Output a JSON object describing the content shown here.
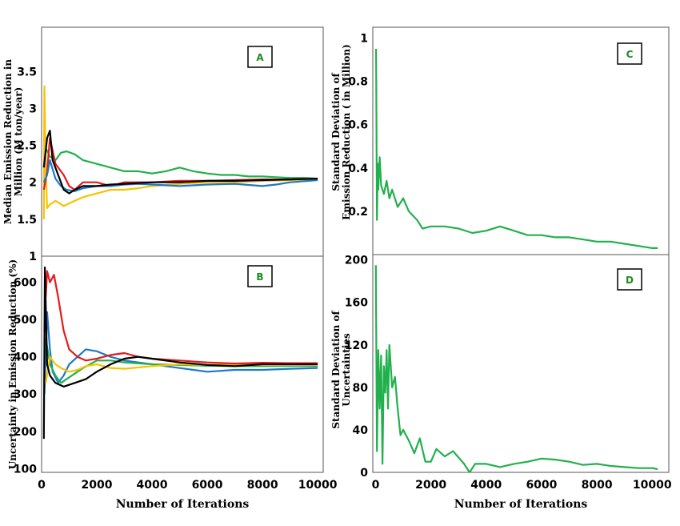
{
  "chart_data": [
    {
      "type": "line",
      "panel_label": "A",
      "ylabel_lines": [
        "Median Emission Reduction in",
        "Million  (M ton/year)"
      ],
      "xlim": [
        0,
        10200
      ],
      "ylim": [
        1,
        4.1
      ],
      "y_ticks": [
        1,
        1.5,
        2,
        2.5,
        3,
        3.5
      ],
      "y_tick_labels": [
        "1",
        "1.5",
        "2",
        "2.5",
        "3",
        "3.5"
      ],
      "series": [
        {
          "color": "#22b04c",
          "x": [
            100,
            300,
            500,
            700,
            900,
            1200,
            1500,
            2000,
            2500,
            3000,
            3500,
            4000,
            4500,
            5000,
            5500,
            6000,
            6500,
            7000,
            7500,
            8000,
            8500,
            9000,
            9500,
            10000
          ],
          "y": [
            2.5,
            2.35,
            2.3,
            2.4,
            2.42,
            2.38,
            2.3,
            2.25,
            2.2,
            2.15,
            2.15,
            2.12,
            2.15,
            2.2,
            2.15,
            2.12,
            2.1,
            2.1,
            2.08,
            2.08,
            2.07,
            2.06,
            2.06,
            2.05
          ]
        },
        {
          "color": "#f5c400",
          "x": [
            80,
            100,
            150,
            200,
            300,
            500,
            800,
            1200,
            1500,
            2000,
            2500,
            3000,
            3500,
            4000,
            5000,
            6000,
            7000,
            8000,
            9000,
            10000
          ],
          "y": [
            1.5,
            3.3,
            2.2,
            1.65,
            1.7,
            1.75,
            1.68,
            1.75,
            1.8,
            1.85,
            1.9,
            1.9,
            1.92,
            1.95,
            1.98,
            2.0,
            2.0,
            2.02,
            2.03,
            2.04
          ]
        },
        {
          "color": "#e41a1c",
          "x": [
            80,
            200,
            300,
            500,
            800,
            1000,
            1200,
            1500,
            2000,
            2500,
            3000,
            3500,
            4000,
            5000,
            6000,
            7000,
            8000,
            9000,
            10000
          ],
          "y": [
            1.9,
            2.15,
            2.6,
            2.25,
            2.1,
            1.95,
            1.9,
            2.0,
            2.0,
            1.95,
            2.0,
            2.0,
            2.0,
            2.02,
            2.02,
            2.03,
            2.04,
            2.04,
            2.05
          ]
        },
        {
          "color": "#1f78c8",
          "x": [
            80,
            200,
            300,
            500,
            700,
            900,
            1200,
            1500,
            2000,
            2500,
            3000,
            3500,
            4000,
            5000,
            6000,
            7000,
            8000,
            8500,
            9000,
            10000
          ],
          "y": [
            2.0,
            2.1,
            2.3,
            2.05,
            1.95,
            1.9,
            1.88,
            1.92,
            1.95,
            1.95,
            1.97,
            1.98,
            1.97,
            1.95,
            1.97,
            1.98,
            1.95,
            1.97,
            2.0,
            2.03
          ]
        },
        {
          "color": "#000000",
          "x": [
            80,
            200,
            300,
            400,
            600,
            800,
            1000,
            1200,
            1500,
            2000,
            2500,
            3000,
            3500,
            4000,
            5000,
            6000,
            7000,
            8000,
            9000,
            10000
          ],
          "y": [
            2.2,
            2.6,
            2.7,
            2.3,
            2.1,
            1.9,
            1.85,
            1.9,
            1.95,
            1.95,
            1.97,
            1.98,
            1.99,
            2.0,
            2.0,
            2.02,
            2.02,
            2.03,
            2.04,
            2.05
          ]
        }
      ]
    },
    {
      "type": "line",
      "panel_label": "B",
      "ylabel_lines": [
        "Uncertainty in Emission Reduction (%)"
      ],
      "xlabel": "Number of Iterations",
      "xlim": [
        0,
        10200
      ],
      "ylim": [
        90,
        670
      ],
      "x_ticks": [
        0,
        2000,
        4000,
        6000,
        8000,
        10000
      ],
      "x_tick_labels": [
        "0",
        "2000",
        "4000",
        "6000",
        "8000",
        "10000"
      ],
      "y_ticks": [
        100,
        200,
        300,
        400,
        500,
        600
      ],
      "y_tick_labels": [
        "100",
        "200",
        "300",
        "400",
        "500",
        "600"
      ],
      "series": [
        {
          "color": "#1f78c8",
          "x": [
            100,
            200,
            300,
            400,
            600,
            800,
            1000,
            1300,
            1600,
            2000,
            2500,
            3000,
            3500,
            4000,
            5000,
            6000,
            7000,
            8000,
            9000,
            10000
          ],
          "y": [
            300,
            520,
            420,
            360,
            330,
            350,
            380,
            400,
            420,
            415,
            400,
            390,
            385,
            380,
            370,
            360,
            365,
            365,
            368,
            370
          ]
        },
        {
          "color": "#22b04c",
          "x": [
            150,
            300,
            500,
            700,
            1000,
            1500,
            2000,
            2500,
            3000,
            4000,
            5000,
            6000,
            7000,
            8000,
            9000,
            10000
          ],
          "y": [
            450,
            380,
            350,
            330,
            345,
            370,
            390,
            390,
            385,
            380,
            378,
            376,
            375,
            375,
            376,
            375
          ]
        },
        {
          "color": "#f5c400",
          "x": [
            150,
            300,
            500,
            700,
            1000,
            1300,
            1600,
            2000,
            2500,
            3000,
            4000,
            5000,
            6000,
            7000,
            8000,
            9000,
            10000
          ],
          "y": [
            330,
            400,
            380,
            370,
            360,
            365,
            375,
            380,
            370,
            368,
            375,
            380,
            378,
            380,
            378,
            378,
            378
          ]
        },
        {
          "color": "#e41a1c",
          "x": [
            150,
            200,
            300,
            450,
            600,
            800,
            1000,
            1300,
            1600,
            2000,
            2500,
            3000,
            3500,
            4000,
            5000,
            6000,
            7000,
            8000,
            9000,
            10000
          ],
          "y": [
            560,
            630,
            600,
            620,
            560,
            470,
            420,
            400,
            390,
            395,
            405,
            410,
            400,
            395,
            390,
            385,
            382,
            384,
            383,
            383
          ]
        },
        {
          "color": "#000000",
          "x": [
            80,
            120,
            200,
            300,
            500,
            800,
            1200,
            1600,
            2000,
            2500,
            3000,
            3500,
            4000,
            5000,
            6000,
            7000,
            8000,
            9000,
            10000
          ],
          "y": [
            180,
            640,
            380,
            350,
            330,
            320,
            330,
            340,
            360,
            380,
            395,
            400,
            395,
            385,
            378,
            375,
            380,
            380,
            380
          ]
        }
      ]
    },
    {
      "type": "line",
      "panel_label": "C",
      "ylabel_lines": [
        "Standard Deviation of",
        "Emission Reduction ( in Million)"
      ],
      "xlim": [
        -100,
        10600
      ],
      "ylim": [
        0,
        1.05
      ],
      "y_ticks": [
        0.2,
        0.4,
        0.6,
        0.8,
        1
      ],
      "y_tick_labels": [
        "0.2",
        "0.4",
        "0.6",
        "0.8",
        "1"
      ],
      "series": [
        {
          "color": "#22b04c",
          "x": [
            20,
            50,
            80,
            100,
            150,
            200,
            300,
            400,
            500,
            600,
            800,
            1000,
            1200,
            1500,
            1700,
            2000,
            2500,
            3000,
            3500,
            4000,
            4500,
            5000,
            5500,
            6000,
            6500,
            7000,
            7500,
            8000,
            8500,
            9000,
            9500,
            10000,
            10200
          ],
          "y": [
            0.95,
            0.16,
            0.42,
            0.3,
            0.45,
            0.32,
            0.28,
            0.34,
            0.26,
            0.3,
            0.22,
            0.26,
            0.2,
            0.16,
            0.12,
            0.13,
            0.13,
            0.12,
            0.1,
            0.11,
            0.13,
            0.11,
            0.09,
            0.09,
            0.08,
            0.08,
            0.07,
            0.06,
            0.06,
            0.05,
            0.04,
            0.03,
            0.03
          ]
        }
      ]
    },
    {
      "type": "line",
      "panel_label": "D",
      "ylabel_lines": [
        "Standard Deviation of",
        "Uncertainties"
      ],
      "xlabel": "Number of Iterations",
      "xlim": [
        -100,
        10600
      ],
      "ylim": [
        0,
        205
      ],
      "x_ticks": [
        0,
        2000,
        4000,
        6000,
        8000,
        10000
      ],
      "x_tick_labels": [
        "0",
        "2000",
        "4000",
        "6000",
        "8000",
        "10000"
      ],
      "y_ticks": [
        0,
        40,
        80,
        120,
        160,
        200
      ],
      "y_tick_labels": [
        "0",
        "40",
        "80",
        "120",
        "160",
        "200"
      ],
      "series": [
        {
          "color": "#22b04c",
          "x": [
            10,
            50,
            100,
            150,
            200,
            250,
            300,
            350,
            400,
            450,
            500,
            600,
            700,
            800,
            900,
            1000,
            1200,
            1400,
            1600,
            1800,
            2000,
            2200,
            2500,
            2800,
            3000,
            3200,
            3400,
            3600,
            4000,
            4500,
            5000,
            5500,
            6000,
            6500,
            7000,
            7500,
            8000,
            8500,
            9000,
            9500,
            10000,
            10200
          ],
          "y": [
            195,
            20,
            115,
            60,
            110,
            8,
            100,
            75,
            115,
            60,
            120,
            80,
            90,
            60,
            35,
            40,
            30,
            18,
            32,
            10,
            10,
            22,
            15,
            20,
            14,
            8,
            0,
            8,
            8,
            5,
            8,
            10,
            13,
            12,
            10,
            7,
            8,
            6,
            5,
            4,
            4,
            3
          ]
        }
      ]
    }
  ]
}
